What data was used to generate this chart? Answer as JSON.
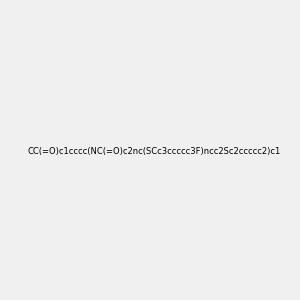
{
  "smiles": "CC(=O)c1cccc(NC(=O)c2nc(SCc3ccccc3F)ncc2Sc2ccccc2)c1",
  "image_size": 300,
  "background_color": "#f0f0f0"
}
